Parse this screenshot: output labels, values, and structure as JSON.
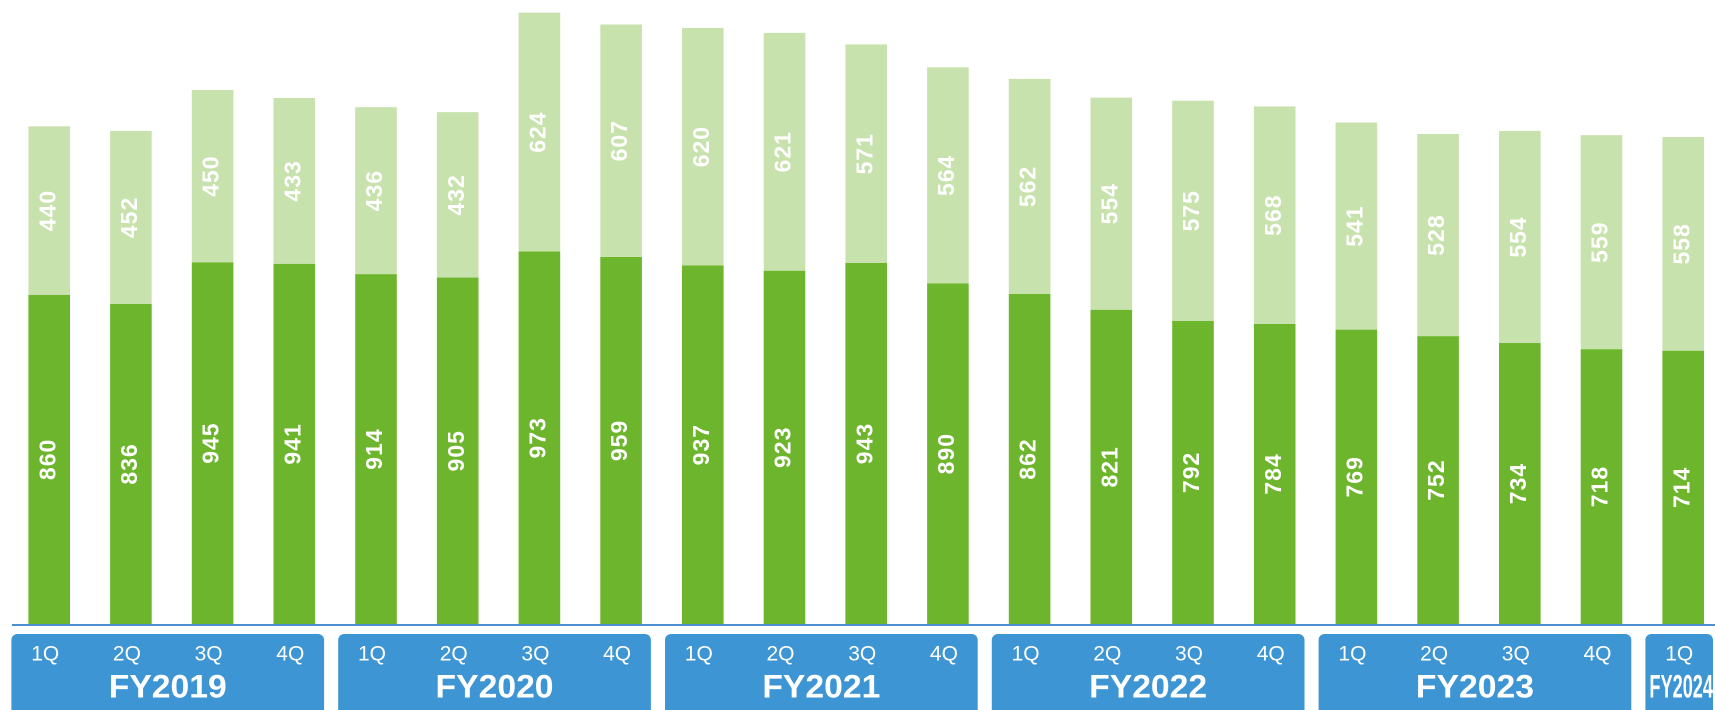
{
  "chart_data": {
    "type": "stacked_bar",
    "categories": [
      "1Q",
      "2Q",
      "3Q",
      "4Q",
      "1Q",
      "2Q",
      "3Q",
      "4Q",
      "1Q",
      "2Q",
      "3Q",
      "4Q",
      "1Q",
      "2Q",
      "3Q",
      "4Q",
      "1Q",
      "2Q",
      "3Q",
      "4Q",
      "1Q"
    ],
    "groups": [
      "FY2019",
      "FY2020",
      "FY2021",
      "FY2022",
      "FY2023",
      "FY2024"
    ],
    "series": [
      {
        "color": "#6db52d",
        "values": [
          860,
          836,
          945,
          941,
          914,
          905,
          973,
          959,
          937,
          923,
          943,
          890,
          862,
          821,
          792,
          784,
          769,
          752,
          734,
          718,
          714
        ]
      },
      {
        "color": "#c8e2ad",
        "values": [
          440,
          452,
          450,
          433,
          436,
          432,
          624,
          607,
          620,
          621,
          571,
          564,
          562,
          554,
          575,
          568,
          541,
          528,
          554,
          559,
          558
        ]
      }
    ],
    "ylim": [
      0,
      1630
    ]
  }
}
